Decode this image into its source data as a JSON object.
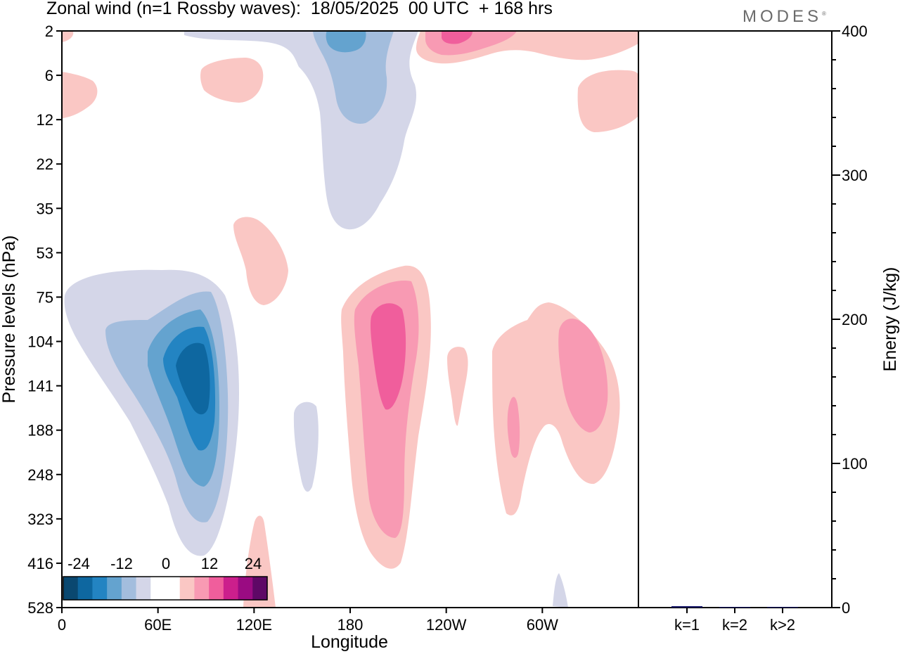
{
  "header": {
    "title": "Zonal wind (n=1 Rossby waves):  18/05/2025  00 UTC  + 168 hrs",
    "logo": "MODES"
  },
  "colors": {
    "scale": [
      "#0a4870",
      "#0e67a0",
      "#2384c2",
      "#64a3cf",
      "#a3bddd",
      "#d4d6e8",
      "#ffffff",
      "#ffffff",
      "#fac7c4",
      "#f89ab3",
      "#f05e9c",
      "#cc1f8c",
      "#9a0b82",
      "#5e0866"
    ],
    "bar": "#141466"
  },
  "chart_data": [
    {
      "type": "heatmap",
      "title": "Zonal wind (n=1 Rossby waves):  18/05/2025  00 UTC  + 168 hrs",
      "xlabel": "Longitude",
      "ylabel": "Pressure levels (hPa)",
      "x_ticks": [
        "0",
        "60E",
        "120E",
        "180",
        "120W",
        "60W"
      ],
      "y_ticks": [
        "2",
        "6",
        "12",
        "22",
        "35",
        "53",
        "75",
        "104",
        "141",
        "188",
        "248",
        "323",
        "416",
        "528"
      ],
      "colorbar": {
        "labels": [
          "-24",
          "-12",
          "0",
          "12",
          "24"
        ],
        "levels": [
          -28,
          -24,
          -20,
          -16,
          -12,
          -8,
          -4,
          0,
          4,
          8,
          12,
          16,
          20,
          24,
          28
        ]
      },
      "features": [
        {
          "lon": 82,
          "pressure": 141,
          "peak": -24
        },
        {
          "lon": 190,
          "pressure": 104,
          "peak": 18
        },
        {
          "lon": 245,
          "pressure": 2,
          "peak": 18
        },
        {
          "lon": 310,
          "pressure": 104,
          "peak": 14
        },
        {
          "lon": 185,
          "pressure": 6,
          "peak": -14
        }
      ]
    },
    {
      "type": "bar",
      "categories": [
        "k=1",
        "k=2",
        "k>2"
      ],
      "values": [
        1,
        0,
        0.5
      ],
      "ylabel": "Energy (J/kg)",
      "ylim": [
        0,
        400
      ],
      "y_ticks": [
        "0",
        "100",
        "200",
        "300",
        "400"
      ]
    }
  ]
}
